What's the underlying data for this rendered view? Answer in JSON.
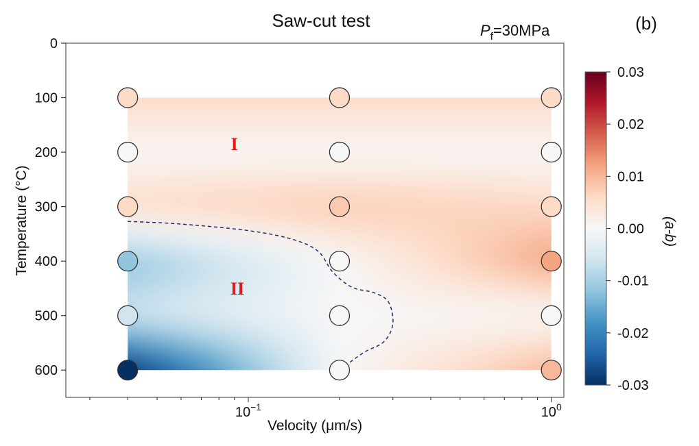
{
  "chart_data": {
    "type": "heatmap",
    "title": "Saw-cut test",
    "panel_label": "(b)",
    "condition": {
      "symbol": "P",
      "subscript": "f",
      "value": "=30MPa"
    },
    "xlabel": "Velocity (μm/s)",
    "ylabel": "Temperature (°C)",
    "x_scale": "log",
    "xlim": [
      0.025,
      1.1
    ],
    "ylim": [
      650,
      0
    ],
    "x_ticks": [
      {
        "value": 0.1,
        "base": "10",
        "exp": "−1"
      },
      {
        "value": 1,
        "base": "10",
        "exp": "0"
      }
    ],
    "y_ticks": [
      0,
      100,
      200,
      300,
      400,
      500,
      600
    ],
    "colorbar": {
      "label": "(a-b)",
      "range": [
        -0.03,
        0.03
      ],
      "ticks": [
        "0.03",
        "0.02",
        "0.01",
        "0.00",
        "-0.01",
        "-0.02",
        "-0.03"
      ],
      "colormap": [
        "#67001f",
        "#b2182b",
        "#d6604d",
        "#f4a582",
        "#fddbc7",
        "#f7f7f7",
        "#d1e5f0",
        "#92c5de",
        "#4393c3",
        "#2166ac",
        "#053061"
      ]
    },
    "x": [
      0.04,
      0.2,
      1.0
    ],
    "y": [
      100,
      200,
      300,
      400,
      500,
      600
    ],
    "values": [
      [
        0.006,
        0.006,
        0.006
      ],
      [
        0.0,
        0.0,
        0.0
      ],
      [
        0.006,
        0.008,
        0.006
      ],
      [
        -0.012,
        0.0,
        0.012
      ],
      [
        -0.006,
        0.0,
        0.0
      ],
      [
        -0.03,
        0.0,
        0.01
      ]
    ],
    "boundary_x": [
      0.04,
      0.06,
      0.1,
      0.14,
      0.17,
      0.19,
      0.22,
      0.26,
      0.29,
      0.3,
      0.28,
      0.24,
      0.2
    ],
    "boundary_y": [
      327,
      332,
      344,
      360,
      382,
      420,
      448,
      458,
      475,
      515,
      548,
      568,
      600
    ],
    "regions": [
      {
        "label": "I",
        "x": 0.09,
        "y": 185
      },
      {
        "label": "II",
        "x": 0.092,
        "y": 450
      }
    ]
  }
}
